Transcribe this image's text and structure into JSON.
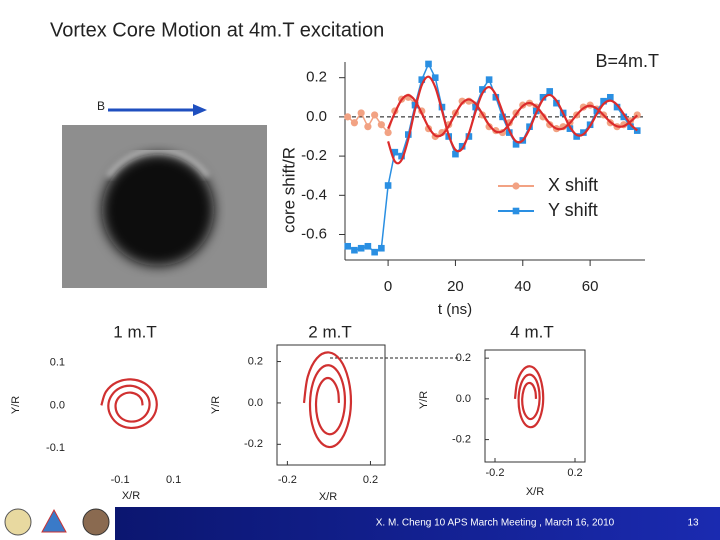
{
  "slide": {
    "title": "Vortex Core Motion at 4m.T excitation",
    "field_label": "B",
    "panel_labels": [
      "1 m.T",
      "2 m.T",
      "4 m.T"
    ],
    "footer": "X. M. Cheng 10 APS March Meeting , March 16, 2010",
    "page": "13"
  },
  "chart_data": [
    {
      "type": "line",
      "annotation": "B=4m.T",
      "xlabel": "t (ns)",
      "ylabel": "core shift/R",
      "xlim": [
        -12.8,
        76.3
      ],
      "ylim": [
        -0.73,
        0.28
      ],
      "xticks": [
        0,
        20,
        40,
        60
      ],
      "yticks": [
        0.2,
        {
          "value": 0,
          "label": "0.0"
        },
        -0.2,
        -0.4,
        -0.6
      ],
      "reference_line": 0,
      "axes": true,
      "frame": false,
      "x": [
        -12,
        -10,
        -8,
        -6,
        -4,
        -2,
        0,
        2,
        4,
        6,
        8,
        10,
        12,
        14,
        16,
        18,
        20,
        22,
        24,
        26,
        28,
        30,
        32,
        34,
        36,
        38,
        40,
        42,
        44,
        46,
        48,
        50,
        52,
        54,
        56,
        58,
        60,
        62,
        64,
        66,
        68,
        70,
        72,
        74
      ],
      "series": [
        {
          "name": "X shift",
          "color": "#f2a283",
          "marker": "circle",
          "smooth": false,
          "values": [
            0.0,
            -0.03,
            0.02,
            -0.05,
            0.01,
            -0.04,
            -0.08,
            0.03,
            0.09,
            0.1,
            0.07,
            0.03,
            -0.06,
            -0.1,
            -0.08,
            -0.04,
            0.02,
            0.08,
            0.08,
            0.06,
            0.01,
            -0.05,
            -0.07,
            -0.08,
            -0.03,
            0.02,
            0.06,
            0.07,
            0.05,
            0.0,
            -0.04,
            -0.06,
            -0.05,
            -0.03,
            0.01,
            0.05,
            0.06,
            0.04,
            0.01,
            -0.03,
            -0.05,
            -0.04,
            -0.02,
            0.01
          ]
        },
        {
          "name": "Y shift",
          "color": "#2a8fe2",
          "marker": "square",
          "smooth": false,
          "values": [
            -0.66,
            -0.68,
            -0.67,
            -0.66,
            -0.69,
            -0.67,
            -0.35,
            -0.18,
            -0.2,
            -0.09,
            0.06,
            0.19,
            0.27,
            0.2,
            0.05,
            -0.1,
            -0.19,
            -0.15,
            -0.1,
            0.05,
            0.14,
            0.19,
            0.1,
            0.0,
            -0.08,
            -0.14,
            -0.12,
            -0.05,
            0.03,
            0.1,
            0.13,
            0.07,
            0.02,
            -0.06,
            -0.1,
            -0.08,
            -0.04,
            0.03,
            0.08,
            0.1,
            0.05,
            0.0,
            -0.05,
            -0.07
          ]
        },
        {
          "color": "#dc2b2b",
          "smooth": true,
          "values": [
            null,
            null,
            null,
            null,
            null,
            null,
            -0.06,
            0.02,
            0.087,
            0.111,
            0.083,
            0.018,
            -0.052,
            -0.095,
            -0.092,
            -0.048,
            0.016,
            0.07,
            0.089,
            0.067,
            0.015,
            -0.041,
            -0.075,
            -0.073,
            -0.038,
            0.013,
            0.056,
            0.071,
            0.053,
            0.012,
            -0.033,
            -0.06,
            -0.059,
            -0.031,
            0.01,
            0.044,
            0.057,
            0.042,
            0.009,
            -0.026,
            -0.048,
            -0.047,
            -0.024,
            0.008
          ]
        },
        {
          "color": "#dc2b2b",
          "smooth": true,
          "values": [
            null,
            null,
            null,
            null,
            null,
            null,
            -0.125,
            -0.227,
            -0.22,
            -0.113,
            0.038,
            0.162,
            0.205,
            0.152,
            0.033,
            -0.093,
            -0.168,
            -0.163,
            -0.084,
            0.028,
            0.12,
            0.152,
            0.113,
            0.025,
            -0.069,
            -0.125,
            -0.12,
            -0.062,
            0.021,
            0.089,
            0.112,
            0.083,
            0.018,
            -0.051,
            -0.092,
            -0.089,
            -0.046,
            0.015,
            0.066,
            0.083,
            0.062,
            0.014,
            -0.038,
            -0.069
          ]
        }
      ]
    },
    {
      "type": "line",
      "xlabel": "X/R",
      "ylabel": "Y/R",
      "xlim": [
        -0.22,
        0.18
      ],
      "ylim": [
        -0.14,
        0.13
      ],
      "xticks": [
        -0.1,
        0.1
      ],
      "yticks": [
        0.1,
        {
          "value": 0,
          "label": "0.0"
        },
        -0.1
      ],
      "frame": false,
      "x": [
        -0.016,
        -0.02,
        -0.036,
        -0.06,
        -0.086,
        -0.108,
        -0.117,
        -0.111,
        -0.091,
        -0.06,
        -0.027,
        -0.001,
        0.01,
        0.003,
        -0.023,
        -0.06,
        -0.1,
        -0.131,
        -0.144,
        -0.134,
        -0.104,
        -0.06,
        -0.014,
        0.022,
        0.037,
        0.026,
        -0.009,
        -0.06,
        -0.113,
        -0.153,
        -0.17
      ],
      "series": [
        {
          "color": "#d03030",
          "smooth": true,
          "values": [
            0,
            0.014,
            0.025,
            0.03,
            0.027,
            0.016,
            0,
            -0.018,
            -0.032,
            -0.038,
            -0.034,
            -0.02,
            0,
            0.021,
            0.038,
            0.046,
            0.041,
            0.024,
            0,
            -0.025,
            -0.045,
            -0.053,
            -0.047,
            -0.028,
            0,
            0.029,
            0.052,
            0.061,
            0.054,
            0.032,
            0
          ]
        }
      ]
    },
    {
      "type": "line",
      "xlabel": "X/R",
      "ylabel": "Y/R",
      "xlim": [
        -0.25,
        0.27
      ],
      "ylim": [
        -0.3,
        0.28
      ],
      "xticks": [
        -0.2,
        0.2
      ],
      "yticks": [
        0.2,
        {
          "value": 0,
          "label": "0.0"
        },
        -0.2
      ],
      "frame": true,
      "x": [
        0.048,
        0.044,
        0.026,
        0,
        -0.029,
        -0.052,
        -0.062,
        -0.056,
        -0.034,
        0,
        0.036,
        0.064,
        0.077,
        0.069,
        0.041,
        0,
        -0.043,
        -0.077,
        -0.091,
        -0.081,
        -0.048,
        0,
        0.05,
        0.089,
        0.106,
        0.093,
        0.055,
        0,
        -0.058,
        -0.102,
        -0.12
      ],
      "series": [
        {
          "color": "#d03030",
          "smooth": true,
          "values": [
            0,
            0.055,
            0.099,
            0.12,
            0.108,
            0.065,
            0,
            -0.07,
            -0.126,
            -0.151,
            -0.135,
            -0.081,
            0,
            0.086,
            0.153,
            0.182,
            0.162,
            0.096,
            0,
            -0.101,
            -0.18,
            -0.213,
            -0.189,
            -0.112,
            0,
            0.117,
            0.207,
            0.244,
            0.216,
            0.127,
            0
          ]
        }
      ]
    },
    {
      "type": "line",
      "xlabel": "X/R",
      "ylabel": "Y/R",
      "xlim": [
        -0.25,
        0.25
      ],
      "ylim": [
        -0.31,
        0.24
      ],
      "xticks": [
        -0.2,
        0.2
      ],
      "yticks": [
        0.2,
        {
          "value": 0,
          "label": "0.0"
        },
        -0.2
      ],
      "frame": true,
      "x": [
        0.005,
        0.002,
        -0.009,
        -0.025,
        -0.043,
        -0.057,
        -0.064,
        -0.06,
        -0.046,
        -0.025,
        -0.003,
        0.015,
        0.023,
        0.018,
        0.001,
        -0.025,
        -0.052,
        -0.073,
        -0.082,
        -0.076,
        -0.055,
        -0.025,
        0.007,
        0.031,
        0.041,
        0.033,
        0.01,
        -0.025,
        -0.061,
        -0.089,
        -0.1
      ],
      "series": [
        {
          "color": "#d03030",
          "smooth": true,
          "values": [
            0,
            0.036,
            0.065,
            0.078,
            0.071,
            0.043,
            0,
            -0.046,
            -0.082,
            -0.099,
            -0.088,
            -0.053,
            0,
            0.056,
            0.1,
            0.119,
            0.106,
            0.063,
            0,
            -0.066,
            -0.118,
            -0.139,
            -0.124,
            -0.073,
            0,
            0.077,
            0.135,
            0.16,
            0.141,
            0.083,
            0
          ]
        }
      ]
    }
  ]
}
